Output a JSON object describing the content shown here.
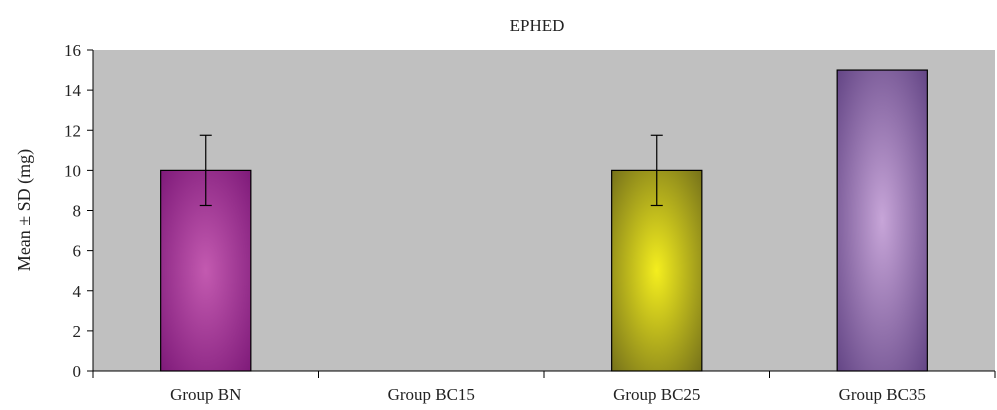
{
  "chart_data": {
    "type": "bar",
    "title": "EPHED",
    "ylabel": "Mean ± SD (mg)",
    "xlabel": "",
    "categories": [
      "Group BN",
      "Group BC15",
      "Group BC25",
      "Group BC35"
    ],
    "values": [
      10,
      0,
      10,
      15
    ],
    "errors": [
      1.75,
      0,
      1.75,
      0
    ],
    "ylim": [
      0,
      16
    ],
    "yticks": [
      0,
      2,
      4,
      6,
      8,
      10,
      12,
      14,
      16
    ],
    "grid": false,
    "legend": "none",
    "colors": {
      "plot_background": "#c0c0c0",
      "bars": [
        {
          "edge": "#7a1676",
          "center": "#c35ab0"
        },
        {
          "edge": "#888888",
          "center": "#aaaaaa"
        },
        {
          "edge": "#6e6a1a",
          "center": "#f4ee1e"
        },
        {
          "edge": "#5d3f80",
          "center": "#c7a5d8"
        }
      ]
    }
  }
}
